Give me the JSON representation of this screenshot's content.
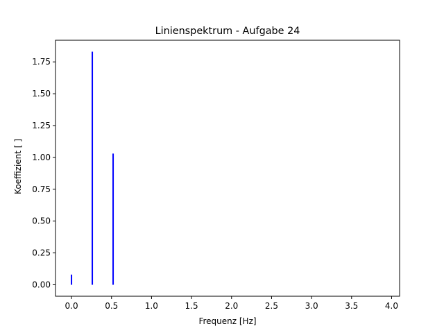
{
  "chart_data": {
    "type": "stem",
    "title": "Linienspektrum - Aufgabe 24",
    "xlabel": "Frequenz [Hz]",
    "ylabel": "Koeffizient [ ]",
    "xlim": [
      -0.2,
      4.1
    ],
    "ylim": [
      -0.09,
      1.92
    ],
    "xticks": [
      0.0,
      0.5,
      1.0,
      1.5,
      2.0,
      2.5,
      3.0,
      3.5,
      4.0
    ],
    "xtick_labels": [
      "0.0",
      "0.5",
      "1.0",
      "1.5",
      "2.0",
      "2.5",
      "3.0",
      "3.5",
      "4.0"
    ],
    "yticks": [
      0.0,
      0.25,
      0.5,
      0.75,
      1.0,
      1.25,
      1.5,
      1.75
    ],
    "ytick_labels": [
      "0.00",
      "0.25",
      "0.50",
      "0.75",
      "1.00",
      "1.25",
      "1.50",
      "1.75"
    ],
    "grid": false,
    "line_color": "#0000ff",
    "lines": [
      {
        "x": 0.0,
        "y": 0.08
      },
      {
        "x": 0.26,
        "y": 1.83
      },
      {
        "x": 0.52,
        "y": 1.03
      }
    ]
  }
}
